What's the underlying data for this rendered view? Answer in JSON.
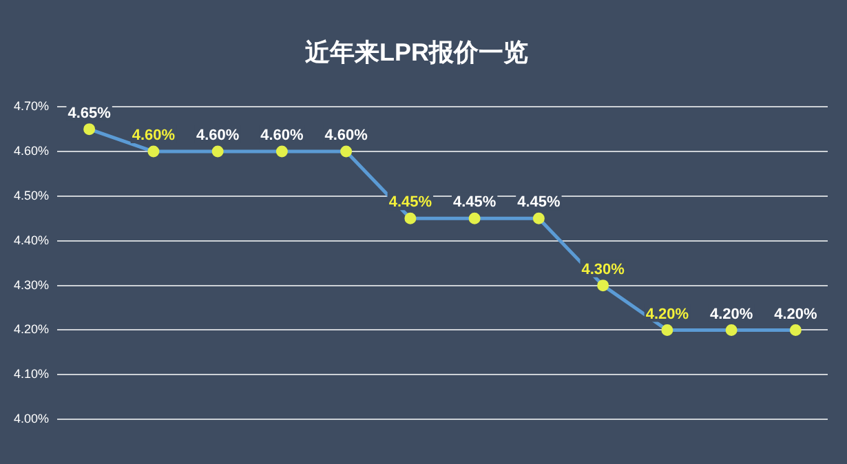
{
  "chart_data": {
    "type": "line",
    "title": "近年来LPR报价一览",
    "categories": [
      null,
      null,
      null,
      null,
      null,
      null,
      null,
      null,
      null,
      null,
      null,
      null
    ],
    "series": [
      {
        "color": "#5b9bd5",
        "values": [
          4.65,
          4.6,
          4.6,
          4.6,
          4.6,
          4.45,
          4.45,
          4.45,
          4.3,
          4.2,
          4.2,
          4.2
        ],
        "value_labels": [
          "4.65%",
          "4.60%",
          "4.60%",
          "4.60%",
          "4.60%",
          "4.45%",
          "4.45%",
          "4.45%",
          "4.30%",
          "4.20%",
          "4.20%",
          "4.20%"
        ]
      }
    ],
    "ylim": [
      4.0,
      4.7
    ],
    "yticks": [
      {
        "value": 4.0,
        "label": "4.00%"
      },
      {
        "value": 4.1,
        "label": "4.10%"
      },
      {
        "value": 4.2,
        "label": "4.20%"
      },
      {
        "value": 4.3,
        "label": "4.30%"
      },
      {
        "value": 4.4,
        "label": "4.40%"
      },
      {
        "value": 4.5,
        "label": "4.50%"
      },
      {
        "value": 4.6,
        "label": "4.60%"
      },
      {
        "value": 4.7,
        "label": "4.70%"
      }
    ],
    "grid": "y",
    "legend": false,
    "marker": "circle",
    "line_style": "solid"
  }
}
